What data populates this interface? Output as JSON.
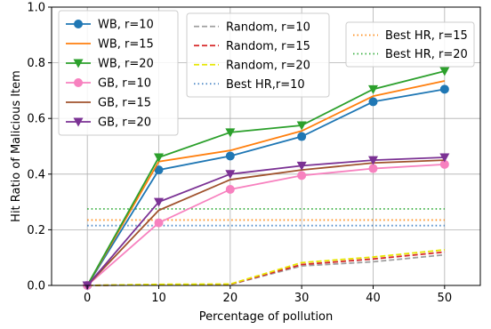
{
  "chart_data": {
    "type": "line",
    "title": "",
    "xlabel": "Percentage of pollution",
    "ylabel": "Hit Ratio of Malicious Item",
    "xlim": [
      -5,
      55
    ],
    "ylim": [
      0,
      1.0
    ],
    "xticks": [
      0,
      10,
      20,
      30,
      40,
      50
    ],
    "yticks": [
      0.0,
      0.2,
      0.4,
      0.6,
      0.8,
      1.0
    ],
    "ytick_labels": [
      "0.0",
      "0.2",
      "0.4",
      "0.6",
      "0.8",
      "1.0"
    ],
    "grid": true,
    "x": [
      0,
      10,
      20,
      30,
      40,
      50
    ],
    "series": [
      {
        "name": "WB, r=10",
        "color": "#1f77b4",
        "linestyle": "solid",
        "marker": "circle",
        "values": [
          0.0,
          0.415,
          0.465,
          0.535,
          0.66,
          0.705
        ]
      },
      {
        "name": "WB, r=15",
        "color": "#ff7f0e",
        "linestyle": "solid",
        "marker": "none",
        "values": [
          0.0,
          0.445,
          0.485,
          0.555,
          0.68,
          0.735
        ]
      },
      {
        "name": "WB, r=20",
        "color": "#2ca02c",
        "linestyle": "solid",
        "marker": "triangle-down",
        "values": [
          0.0,
          0.46,
          0.55,
          0.575,
          0.705,
          0.77
        ]
      },
      {
        "name": "GB, r=10",
        "color": "#f781bf",
        "linestyle": "solid",
        "marker": "circle",
        "values": [
          0.0,
          0.225,
          0.345,
          0.395,
          0.42,
          0.435
        ]
      },
      {
        "name": "GB, r=15",
        "color": "#a0522d",
        "linestyle": "solid",
        "marker": "none",
        "values": [
          0.0,
          0.27,
          0.38,
          0.415,
          0.44,
          0.45
        ]
      },
      {
        "name": "GB, r=20",
        "color": "#7b3294",
        "linestyle": "solid",
        "marker": "triangle-down",
        "values": [
          0.0,
          0.3,
          0.4,
          0.43,
          0.45,
          0.46
        ]
      },
      {
        "name": "Random, r=10",
        "color": "#a0a0a0",
        "linestyle": "dashed",
        "marker": "none",
        "values": [
          0.0,
          0.002,
          0.003,
          0.07,
          0.085,
          0.11
        ]
      },
      {
        "name": "Random, r=15",
        "color": "#d62728",
        "linestyle": "dashed",
        "marker": "none",
        "values": [
          0.0,
          0.003,
          0.004,
          0.075,
          0.095,
          0.12
        ]
      },
      {
        "name": "Random, r=20",
        "color": "#e6e600",
        "linestyle": "dashed",
        "marker": "none",
        "values": [
          0.0,
          0.004,
          0.005,
          0.082,
          0.102,
          0.128
        ]
      },
      {
        "name": "Best HR,r=10",
        "color": "#4a86c5",
        "linestyle": "dotted",
        "marker": "none",
        "values": [
          0.215,
          0.215,
          0.215,
          0.215,
          0.215,
          0.215
        ]
      },
      {
        "name": "Best HR, r=15",
        "color": "#ff8c1a",
        "linestyle": "dotted",
        "marker": "none",
        "values": [
          0.235,
          0.235,
          0.235,
          0.235,
          0.235,
          0.235
        ]
      },
      {
        "name": "Best HR, r=20",
        "color": "#3cb044",
        "linestyle": "dotted",
        "marker": "none",
        "values": [
          0.275,
          0.275,
          0.275,
          0.275,
          0.275,
          0.275
        ]
      }
    ],
    "legends": [
      {
        "placement": "top-left",
        "entries": [
          0,
          1,
          2,
          3,
          4,
          5
        ]
      },
      {
        "placement": "top-center",
        "entries": [
          6,
          7,
          8,
          9
        ]
      },
      {
        "placement": "top-right",
        "entries": [
          10,
          11
        ]
      }
    ]
  }
}
